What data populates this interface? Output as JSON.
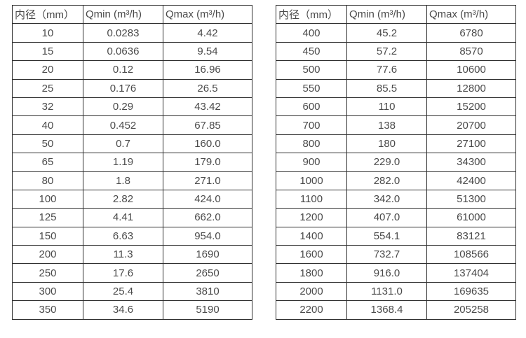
{
  "colors": {
    "text": "#4a4a4a",
    "border": "#2f2f2f",
    "background": "#ffffff"
  },
  "tables": [
    {
      "name": "flow-rate-table-small-diameters",
      "headers": [
        "内径（mm）",
        "Qmin (m³/h)",
        "Qmax (m³/h)"
      ],
      "rows": [
        [
          "10",
          "0.0283",
          "4.42"
        ],
        [
          "15",
          "0.0636",
          "9.54"
        ],
        [
          "20",
          "0.12",
          "16.96"
        ],
        [
          "25",
          "0.176",
          "26.5"
        ],
        [
          "32",
          "0.29",
          "43.42"
        ],
        [
          "40",
          "0.452",
          "67.85"
        ],
        [
          "50",
          "0.7",
          "160.0"
        ],
        [
          "65",
          "1.19",
          "179.0"
        ],
        [
          "80",
          "1.8",
          "271.0"
        ],
        [
          "100",
          "2.82",
          "424.0"
        ],
        [
          "125",
          "4.41",
          "662.0"
        ],
        [
          "150",
          "6.63",
          "954.0"
        ],
        [
          "200",
          "11.3",
          "1690"
        ],
        [
          "250",
          "17.6",
          "2650"
        ],
        [
          "300",
          "25.4",
          "3810"
        ],
        [
          "350",
          "34.6",
          "5190"
        ]
      ]
    },
    {
      "name": "flow-rate-table-large-diameters",
      "headers": [
        "内径（mm）",
        "Qmin (m³/h)",
        "Qmax (m³/h)"
      ],
      "rows": [
        [
          "400",
          "45.2",
          "6780"
        ],
        [
          "450",
          "57.2",
          "8570"
        ],
        [
          "500",
          "77.6",
          "10600"
        ],
        [
          "550",
          "85.5",
          "12800"
        ],
        [
          "600",
          "110",
          "15200"
        ],
        [
          "700",
          "138",
          "20700"
        ],
        [
          "800",
          "180",
          "27100"
        ],
        [
          "900",
          "229.0",
          "34300"
        ],
        [
          "1000",
          "282.0",
          "42400"
        ],
        [
          "1100",
          "342.0",
          "51300"
        ],
        [
          "1200",
          "407.0",
          "61000"
        ],
        [
          "1400",
          "554.1",
          "83121"
        ],
        [
          "1600",
          "732.7",
          "108566"
        ],
        [
          "1800",
          "916.0",
          "137404"
        ],
        [
          "2000",
          "1131.0",
          "169635"
        ],
        [
          "2200",
          "1368.4",
          "205258"
        ]
      ]
    }
  ]
}
